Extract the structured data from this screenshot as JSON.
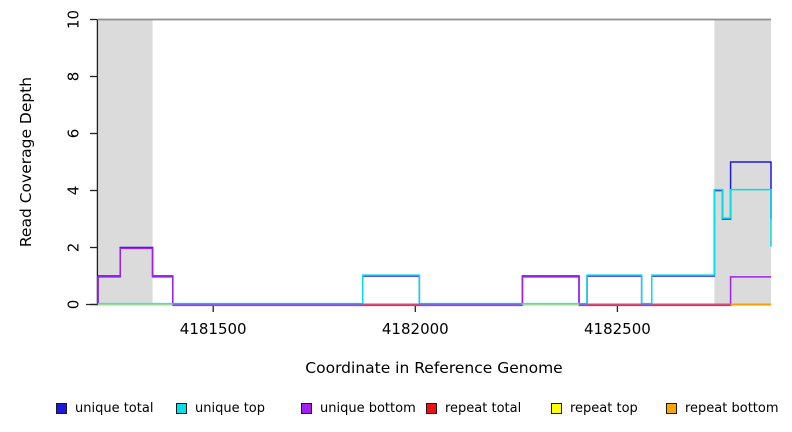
{
  "figure": {
    "xlabel": "Coordinate in Reference Genome",
    "ylabel": "Read Coverage Depth"
  },
  "legend": {
    "items": [
      {
        "label": "unique total",
        "color": "#1a1ae0"
      },
      {
        "label": "unique top",
        "color": "#00e0e6"
      },
      {
        "label": "unique bottom",
        "color": "#a020f0"
      },
      {
        "label": "repeat total",
        "color": "#ee1111"
      },
      {
        "label": "repeat top",
        "color": "#ffff00"
      },
      {
        "label": "repeat bottom",
        "color": "#ffa500"
      }
    ]
  },
  "chart_data": {
    "type": "line",
    "subtype": "step-coverage",
    "title": "",
    "xlabel": "Coordinate in Reference Genome",
    "ylabel": "Read Coverage Depth",
    "xlim": [
      4181215,
      4182880
    ],
    "ylim": [
      0,
      10
    ],
    "xticks": [
      4181500,
      4182000,
      4182500
    ],
    "yticks": [
      0,
      2,
      4,
      6,
      8,
      10
    ],
    "grid": false,
    "legend_position": "bottom",
    "shade_color": "#dbdbdb",
    "repeat_regions_shaded": [
      [
        4181215,
        4181350
      ],
      [
        4182740,
        4182880
      ]
    ],
    "series": [
      {
        "name": "unique total",
        "color": "#1a1ae0",
        "edge_drop_to": 3,
        "segments": [
          [
            4181215,
            4181270,
            1
          ],
          [
            4181270,
            4181350,
            2
          ],
          [
            4181350,
            4181400,
            1
          ],
          [
            4181400,
            4181870,
            0
          ],
          [
            4181870,
            4182010,
            1
          ],
          [
            4182010,
            4182265,
            0
          ],
          [
            4182265,
            4182405,
            1
          ],
          [
            4182405,
            4182425,
            0
          ],
          [
            4182425,
            4182560,
            1
          ],
          [
            4182560,
            4182585,
            0
          ],
          [
            4182585,
            4182740,
            1
          ],
          [
            4182740,
            4182760,
            4
          ],
          [
            4182760,
            4182780,
            3
          ],
          [
            4182780,
            4182880,
            5
          ]
        ]
      },
      {
        "name": "unique top",
        "color": "#00e0e6",
        "edge_drop_to": 2,
        "segments": [
          [
            4181215,
            4181870,
            0
          ],
          [
            4181870,
            4182010,
            1
          ],
          [
            4182010,
            4182425,
            0
          ],
          [
            4182425,
            4182560,
            1
          ],
          [
            4182560,
            4182585,
            0
          ],
          [
            4182585,
            4182740,
            1
          ],
          [
            4182740,
            4182760,
            4
          ],
          [
            4182760,
            4182780,
            3
          ],
          [
            4182780,
            4182880,
            4
          ]
        ]
      },
      {
        "name": "unique bottom",
        "color": "#a020f0",
        "edge_drop_to": null,
        "segments": [
          [
            4181215,
            4181270,
            1
          ],
          [
            4181270,
            4181350,
            2
          ],
          [
            4181350,
            4181400,
            1
          ],
          [
            4181400,
            4182265,
            0
          ],
          [
            4182265,
            4182405,
            1
          ],
          [
            4182405,
            4182780,
            0
          ],
          [
            4182780,
            4182880,
            1
          ]
        ]
      },
      {
        "name": "repeat total",
        "color": "#ee1111",
        "edge_drop_to": null,
        "segments": [
          [
            4181215,
            4182880,
            0
          ]
        ]
      },
      {
        "name": "repeat top",
        "color": "#ffff00",
        "edge_drop_to": null,
        "segments": [
          [
            4181215,
            4182880,
            0
          ]
        ]
      },
      {
        "name": "repeat bottom",
        "color": "#ffa500",
        "edge_drop_to": null,
        "segments": [
          [
            4181215,
            4182880,
            0
          ]
        ]
      }
    ],
    "zero_line_visible_segments": [
      [
        4181215,
        4181400,
        "#99db99"
      ],
      [
        4181400,
        4181870,
        "#7e66e3"
      ],
      [
        4181870,
        4182010,
        "#d84a6e"
      ],
      [
        4182010,
        4182265,
        "#7e66e3"
      ],
      [
        4182265,
        4182405,
        "#99db99"
      ],
      [
        4182405,
        4182425,
        "#7e66e3"
      ],
      [
        4182425,
        4182560,
        "#d84a6e"
      ],
      [
        4182560,
        4182585,
        "#7e66e3"
      ],
      [
        4182585,
        4182780,
        "#d84a6e"
      ],
      [
        4182780,
        4182880,
        "#ff9d00"
      ]
    ]
  }
}
